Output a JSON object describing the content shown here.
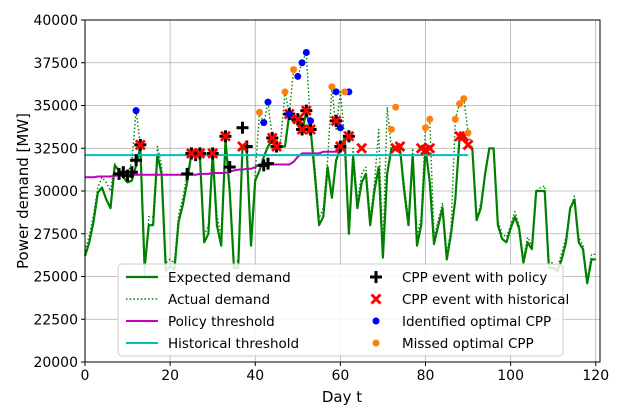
{
  "chart_data": {
    "type": "line",
    "title": "",
    "xlabel": "Day t",
    "ylabel": "Power demand [MW]",
    "xlim": [
      0,
      121
    ],
    "ylim": [
      20000,
      40000
    ],
    "xticks": [
      0,
      20,
      40,
      60,
      80,
      100,
      120
    ],
    "yticks": [
      20000,
      22500,
      25000,
      27500,
      30000,
      32500,
      35000,
      37500,
      40000
    ],
    "grid": true,
    "legend_position": "lower-center",
    "colors": {
      "expected": "#008000",
      "actual": "#008000",
      "policy": "#bf00bf",
      "historical": "#00bfbf",
      "cpp_policy": "#000000",
      "cpp_historical": "#ff0000",
      "identified": "#0000ff",
      "missed": "#ff7f0e"
    },
    "series": [
      {
        "name": "Expected demand",
        "style": "solid",
        "x": [
          0,
          1,
          2,
          3,
          4,
          5,
          6,
          7,
          8,
          9,
          10,
          11,
          12,
          13,
          14,
          15,
          16,
          17,
          18,
          19,
          20,
          21,
          22,
          23,
          24,
          25,
          26,
          27,
          28,
          29,
          30,
          31,
          32,
          33,
          34,
          35,
          36,
          37,
          38,
          39,
          40,
          41,
          42,
          43,
          44,
          45,
          46,
          47,
          48,
          49,
          50,
          51,
          52,
          53,
          54,
          55,
          56,
          57,
          58,
          59,
          60,
          61,
          62,
          63,
          64,
          65,
          66,
          67,
          68,
          69,
          70,
          71,
          72,
          73,
          74,
          75,
          76,
          77,
          78,
          79,
          80,
          81,
          82,
          83,
          84,
          85,
          86,
          87,
          88,
          89,
          90,
          91,
          92,
          93,
          94,
          95,
          96,
          97,
          98,
          99,
          100,
          101,
          102,
          103,
          104,
          105,
          106,
          107,
          108,
          109,
          110,
          111,
          112,
          113,
          114,
          115,
          116,
          117,
          118,
          119,
          120
        ],
        "values": [
          26200,
          27000,
          28200,
          29900,
          30200,
          29500,
          29000,
          31500,
          31200,
          30800,
          30500,
          30600,
          31500,
          32600,
          25500,
          28000,
          28000,
          32100,
          31000,
          25300,
          25600,
          25400,
          28200,
          29200,
          30500,
          32200,
          32300,
          32000,
          27000,
          27500,
          32200,
          28000,
          26800,
          33000,
          30000,
          25500,
          25500,
          32600,
          32500,
          26800,
          30600,
          31200,
          32000,
          32600,
          33000,
          32600,
          32600,
          32600,
          34500,
          34000,
          34200,
          33500,
          34600,
          33600,
          31000,
          28000,
          28500,
          31400,
          29600,
          31800,
          32500,
          33100,
          27500,
          32000,
          29000,
          30500,
          31000,
          28000,
          30000,
          31400,
          26100,
          31000,
          32500,
          32600,
          32500,
          30000,
          28000,
          32100,
          26800,
          28000,
          32500,
          30500,
          26900,
          28000,
          29000,
          26000,
          27500,
          29500,
          33100,
          33100,
          32700,
          32500,
          28300,
          29000,
          31000,
          32500,
          32500,
          28000,
          27200,
          27000,
          27800,
          28500,
          27800,
          25800,
          27000,
          26600,
          30000,
          30000,
          30000,
          25500,
          25500,
          25300,
          26000,
          27000,
          29000,
          29500,
          27000,
          26600,
          24600,
          26000,
          26000
        ]
      },
      {
        "name": "Actual demand",
        "style": "dotted",
        "x": [
          0,
          1,
          2,
          3,
          4,
          5,
          6,
          7,
          8,
          9,
          10,
          11,
          12,
          13,
          14,
          15,
          16,
          17,
          18,
          19,
          20,
          21,
          22,
          23,
          24,
          25,
          26,
          27,
          28,
          29,
          30,
          31,
          32,
          33,
          34,
          35,
          36,
          37,
          38,
          39,
          40,
          41,
          42,
          43,
          44,
          45,
          46,
          47,
          48,
          49,
          50,
          51,
          52,
          53,
          54,
          55,
          56,
          57,
          58,
          59,
          60,
          61,
          62,
          63,
          64,
          65,
          66,
          67,
          68,
          69,
          70,
          71,
          72,
          73,
          74,
          75,
          76,
          77,
          78,
          79,
          80,
          81,
          82,
          83,
          84,
          85,
          86,
          87,
          88,
          89,
          90,
          91,
          92,
          93,
          94,
          95,
          96,
          97,
          98,
          99,
          100,
          101,
          102,
          103,
          104,
          105,
          106,
          107,
          108,
          109,
          110,
          111,
          112,
          113,
          114,
          115,
          116,
          117,
          118,
          119,
          120
        ],
        "values": [
          26500,
          27400,
          28600,
          30200,
          30800,
          30500,
          30000,
          31600,
          31100,
          30900,
          31000,
          31700,
          34700,
          32700,
          25000,
          28500,
          28500,
          32600,
          31500,
          25800,
          26000,
          25800,
          28600,
          29600,
          31000,
          32200,
          32200,
          32100,
          27400,
          28000,
          32200,
          28600,
          27300,
          33200,
          30400,
          25500,
          26000,
          32600,
          32500,
          27300,
          31000,
          34600,
          33900,
          35200,
          33100,
          32500,
          33000,
          35800,
          34500,
          37100,
          36700,
          37500,
          38100,
          33600,
          31500,
          28400,
          29000,
          31800,
          36100,
          33600,
          35800,
          33200,
          28000,
          32500,
          29400,
          31000,
          31400,
          28400,
          30400,
          33600,
          26500,
          34900,
          32500,
          32600,
          32500,
          30400,
          28300,
          32500,
          27300,
          28500,
          33700,
          34200,
          27300,
          28300,
          29300,
          26300,
          27800,
          34200,
          35100,
          35400,
          33400,
          32500,
          28300,
          29300,
          31000,
          32500,
          32500,
          28300,
          27500,
          27300,
          28000,
          28800,
          28000,
          26000,
          27300,
          26800,
          30000,
          30200,
          30300,
          25800,
          25800,
          25500,
          26400,
          27300,
          29000,
          29700,
          27300,
          26800,
          24800,
          26300,
          26300
        ]
      },
      {
        "name": "Policy threshold",
        "style": "solid",
        "x": [
          0,
          1,
          2,
          3,
          4,
          5,
          6,
          7,
          8,
          9,
          10,
          11,
          12,
          13,
          14,
          15,
          16,
          17,
          18,
          19,
          20,
          21,
          22,
          23,
          24,
          25,
          26,
          27,
          28,
          29,
          30,
          31,
          32,
          33,
          34,
          35,
          36,
          37,
          38,
          39,
          40,
          41,
          42,
          43,
          44,
          45,
          46,
          47,
          48,
          49,
          50,
          51,
          52,
          53,
          54,
          55,
          56,
          57,
          58,
          59,
          60
        ],
        "values": [
          30800,
          30800,
          30800,
          30850,
          30850,
          30850,
          30850,
          30900,
          30900,
          30900,
          30900,
          30950,
          30950,
          30950,
          30950,
          30950,
          30950,
          30950,
          30950,
          30950,
          30950,
          30950,
          30950,
          30950,
          30950,
          30950,
          30950,
          31000,
          31000,
          31000,
          31050,
          31050,
          31050,
          31050,
          31150,
          31200,
          31250,
          31250,
          31300,
          31300,
          31400,
          31550,
          31550,
          31550,
          31550,
          31550,
          31550,
          31550,
          31550,
          31700,
          32000,
          32200,
          32200,
          32200,
          32200,
          32200,
          32300,
          32300,
          32300,
          32300,
          32300
        ]
      },
      {
        "name": "Historical threshold",
        "style": "solid",
        "x": [
          0,
          90
        ],
        "values": [
          32100,
          32100
        ]
      }
    ],
    "markers": [
      {
        "name": "CPP event with policy",
        "symbol": "plus",
        "points": [
          [
            8,
            31000
          ],
          [
            9,
            31100
          ],
          [
            10,
            30900
          ],
          [
            11,
            31100
          ],
          [
            12,
            31800
          ],
          [
            13,
            32700
          ],
          [
            24,
            31000
          ],
          [
            25,
            32200
          ],
          [
            26,
            32100
          ],
          [
            27,
            32200
          ],
          [
            30,
            32200
          ],
          [
            33,
            33200
          ],
          [
            34,
            31400
          ],
          [
            37,
            33700
          ],
          [
            38,
            32600
          ],
          [
            42,
            31500
          ],
          [
            43,
            31600
          ],
          [
            44,
            33100
          ],
          [
            45,
            32600
          ],
          [
            48,
            34500
          ],
          [
            50,
            34200
          ],
          [
            51,
            33600
          ],
          [
            52,
            34700
          ],
          [
            53,
            33600
          ],
          [
            59,
            34100
          ],
          [
            60,
            32600
          ],
          [
            62,
            33200
          ]
        ]
      },
      {
        "name": "CPP event with historical",
        "symbol": "x",
        "points": [
          [
            13,
            32700
          ],
          [
            25,
            32200
          ],
          [
            27,
            32200
          ],
          [
            30,
            32200
          ],
          [
            33,
            33200
          ],
          [
            37,
            32600
          ],
          [
            44,
            33100
          ],
          [
            45,
            32600
          ],
          [
            48,
            34500
          ],
          [
            50,
            34200
          ],
          [
            51,
            33600
          ],
          [
            52,
            34700
          ],
          [
            53,
            33600
          ],
          [
            59,
            34100
          ],
          [
            60,
            32600
          ],
          [
            62,
            33200
          ],
          [
            65,
            32500
          ],
          [
            73,
            32500
          ],
          [
            74,
            32600
          ],
          [
            79,
            32500
          ],
          [
            80,
            32400
          ],
          [
            81,
            32500
          ],
          [
            88,
            33200
          ],
          [
            89,
            33200
          ],
          [
            90,
            32700
          ]
        ]
      },
      {
        "name": "Identified optimal CPP",
        "symbol": "circle",
        "points": [
          [
            12,
            34700
          ],
          [
            42,
            34000
          ],
          [
            43,
            35200
          ],
          [
            48,
            34500
          ],
          [
            50,
            36700
          ],
          [
            51,
            37500
          ],
          [
            52,
            38100
          ],
          [
            53,
            34100
          ],
          [
            59,
            35800
          ],
          [
            60,
            33700
          ],
          [
            62,
            35800
          ]
        ]
      },
      {
        "name": "Missed optimal CPP",
        "symbol": "circle",
        "points": [
          [
            41,
            34600
          ],
          [
            47,
            35800
          ],
          [
            49,
            37100
          ],
          [
            58,
            36100
          ],
          [
            61,
            35800
          ],
          [
            72,
            33600
          ],
          [
            73,
            34900
          ],
          [
            80,
            33700
          ],
          [
            81,
            34200
          ],
          [
            87,
            34200
          ],
          [
            88,
            35100
          ],
          [
            89,
            35400
          ],
          [
            90,
            33400
          ]
        ]
      }
    ]
  }
}
